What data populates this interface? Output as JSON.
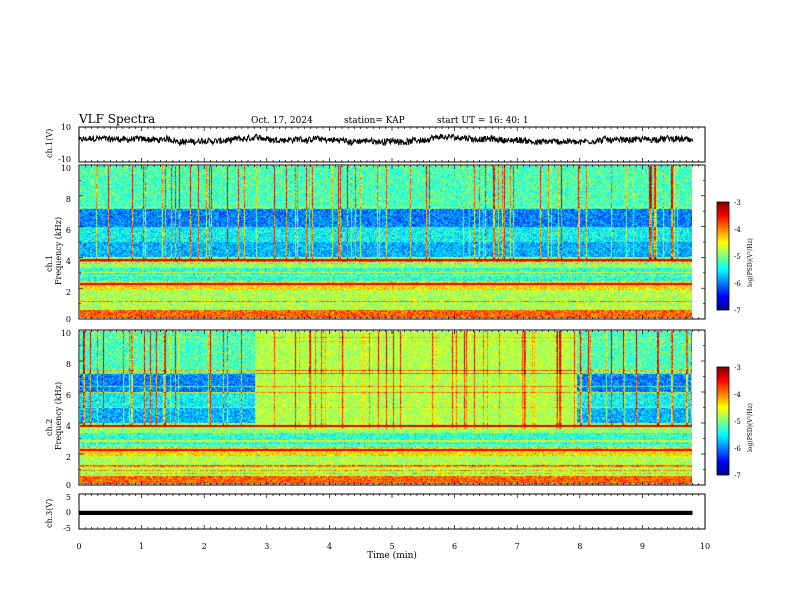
{
  "header": {
    "title": "VLF Spectra",
    "date": "Oct. 17, 2024",
    "station": "station= KAP",
    "start": "start  UT =   16: 40: 1"
  },
  "colors": {
    "spectrogram_palette": [
      "#00007f",
      "#0000ff",
      "#0080ff",
      "#00ffff",
      "#7fff7f",
      "#ffff00",
      "#ff8000",
      "#ff0000",
      "#7f0000"
    ]
  },
  "chart_data": [
    {
      "type": "line",
      "panel": "ch1-waveform",
      "ylabel": "ch.1(V)",
      "ylim": [
        -10,
        10
      ],
      "ytick_labels": [
        "10",
        "-10"
      ],
      "xlim": [
        0,
        10
      ],
      "trace_range_min": [
        0,
        9.8
      ],
      "trace_level_V": [
        -1,
        6
      ]
    },
    {
      "type": "heatmap",
      "panel": "ch1-spectrogram",
      "ylabel_channel": "ch.1",
      "ylabel": "Frequency  (kHz)",
      "ylim": [
        0,
        10
      ],
      "ytick_labels": [
        "0",
        "2",
        "4",
        "6",
        "8",
        "10"
      ],
      "xlim": [
        0,
        9.8
      ],
      "colorbar_label": "log(PSD)(V²/Hz)",
      "colorbar_range": [
        -7,
        -3
      ],
      "colorbar_ticks": [
        "-3",
        "-4",
        "-5",
        "-6",
        "-7"
      ]
    },
    {
      "type": "heatmap",
      "panel": "ch2-spectrogram",
      "ylabel_channel": "ch.2",
      "ylabel": "Frequency  (kHz)",
      "ylim": [
        0,
        10
      ],
      "ytick_labels": [
        "0",
        "2",
        "4",
        "6",
        "8",
        "10"
      ],
      "xlim": [
        0,
        9.8
      ],
      "enhanced_interval_min": [
        2.8,
        7.95
      ],
      "colorbar_label": "log(PSD)(V²/Hz)",
      "colorbar_range": [
        -7,
        -3
      ],
      "colorbar_ticks": [
        "-3",
        "-4",
        "-5",
        "-6",
        "-7"
      ]
    },
    {
      "type": "line",
      "panel": "ch3-waveform",
      "ylabel": "ch.3(V)",
      "ylim": [
        -5,
        5
      ],
      "ytick_labels": [
        "5",
        "0",
        "-5"
      ],
      "trace_level_V": [
        -1,
        0.2
      ]
    }
  ],
  "xaxis": {
    "label": "Time  (min)",
    "range": [
      0,
      10
    ],
    "ticks": [
      "0",
      "1",
      "2",
      "3",
      "4",
      "5",
      "6",
      "7",
      "8",
      "9",
      "10"
    ]
  }
}
